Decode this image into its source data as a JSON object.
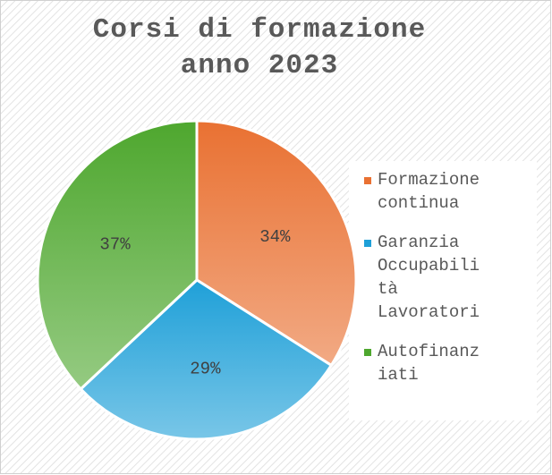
{
  "chart_data": {
    "type": "pie",
    "title": "Corsi di formazione anno 2023",
    "categories": [
      "Formazione continua",
      "Garanzia Occupabilità Lavoratori",
      "Autofinanziati"
    ],
    "values": [
      34,
      29,
      37
    ],
    "value_labels": [
      "34%",
      "29%",
      "37%"
    ],
    "colors": [
      "#e97132",
      "#1fa0d8",
      "#4ea72e"
    ],
    "legend": "right"
  }
}
